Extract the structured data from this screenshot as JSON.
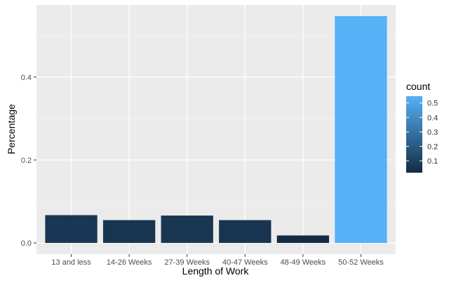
{
  "chart_data": {
    "type": "bar",
    "categories": [
      "13 and less",
      "14-26 Weeks",
      "27-39 Weeks",
      "40-47 Weeks",
      "48-49 Weeks",
      "50-52 Weeks"
    ],
    "values": [
      0.067,
      0.055,
      0.066,
      0.055,
      0.018,
      0.547
    ],
    "title": "",
    "xlabel": "Length of Work",
    "ylabel": "Percentage",
    "ylim": [
      -0.027,
      0.574
    ],
    "yticks": [
      0.0,
      0.2,
      0.4
    ],
    "ytick_labels": [
      "0.0",
      "0.2",
      "0.4"
    ],
    "grid": true,
    "legend": {
      "title": "count",
      "position": "right",
      "ticks": [
        0.1,
        0.2,
        0.3,
        0.4,
        0.5
      ],
      "tick_labels": [
        "0.1",
        "0.2",
        "0.3",
        "0.4",
        "0.5"
      ],
      "range": [
        0.018,
        0.547
      ],
      "low_color": "#132B43",
      "high_color": "#56B1F7"
    },
    "colors": {
      "panel": "#EBEBEB",
      "grid_major": "#FFFFFF",
      "grid_minor": "#F5F5F5",
      "axis_text": "#4D4D4D"
    }
  }
}
